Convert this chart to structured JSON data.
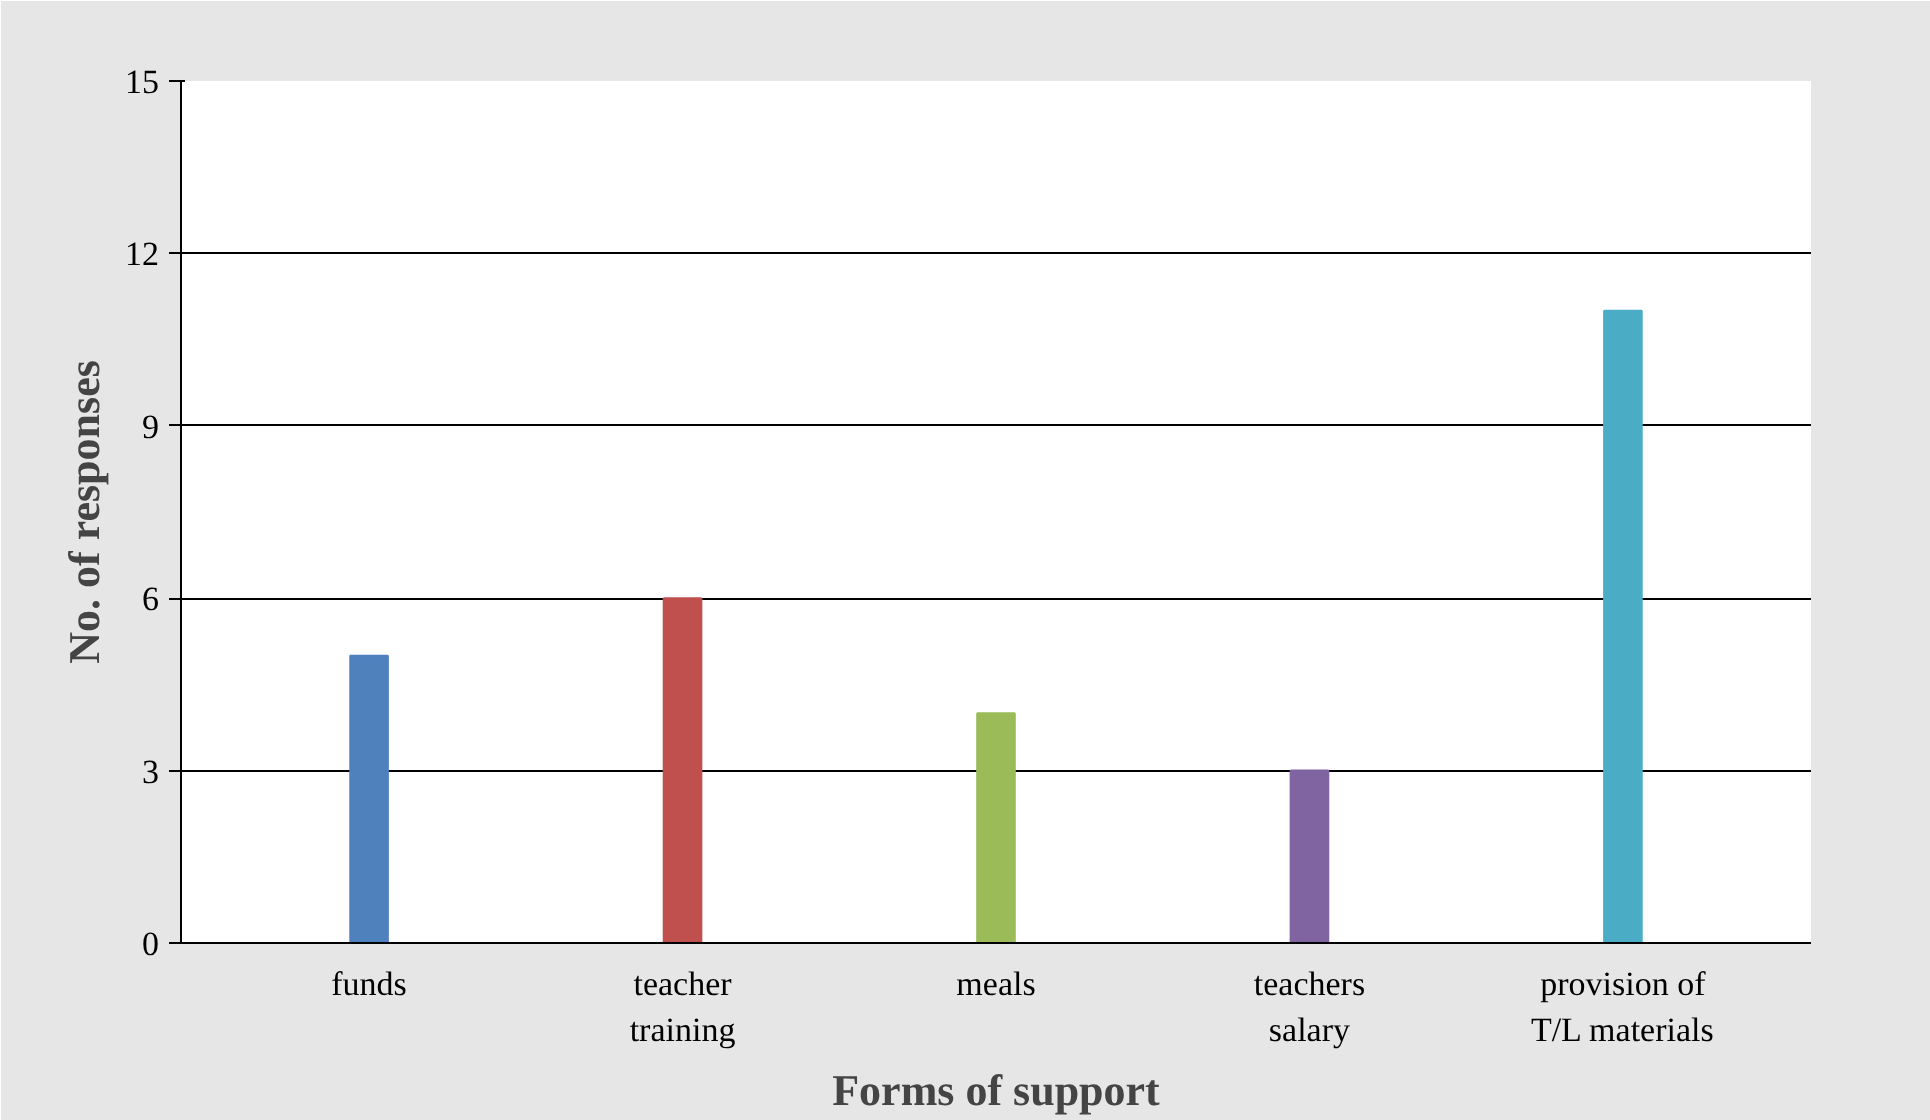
{
  "chart_data": {
    "type": "bar",
    "xlabel": "Forms of support",
    "ylabel": "No. of responses",
    "categories": [
      "funds",
      "teacher\ntraining",
      "meals",
      "teachers\nsalary",
      "provision of\nT/L materials"
    ],
    "values": [
      5,
      6,
      4,
      3,
      11
    ],
    "colors": [
      "#4f81bd",
      "#c0504d",
      "#9bbb59",
      "#8064a2",
      "#4bacc6"
    ],
    "ylim": [
      0,
      15
    ],
    "yticks": [
      0,
      3,
      6,
      9,
      12,
      15
    ],
    "grid": "y"
  }
}
